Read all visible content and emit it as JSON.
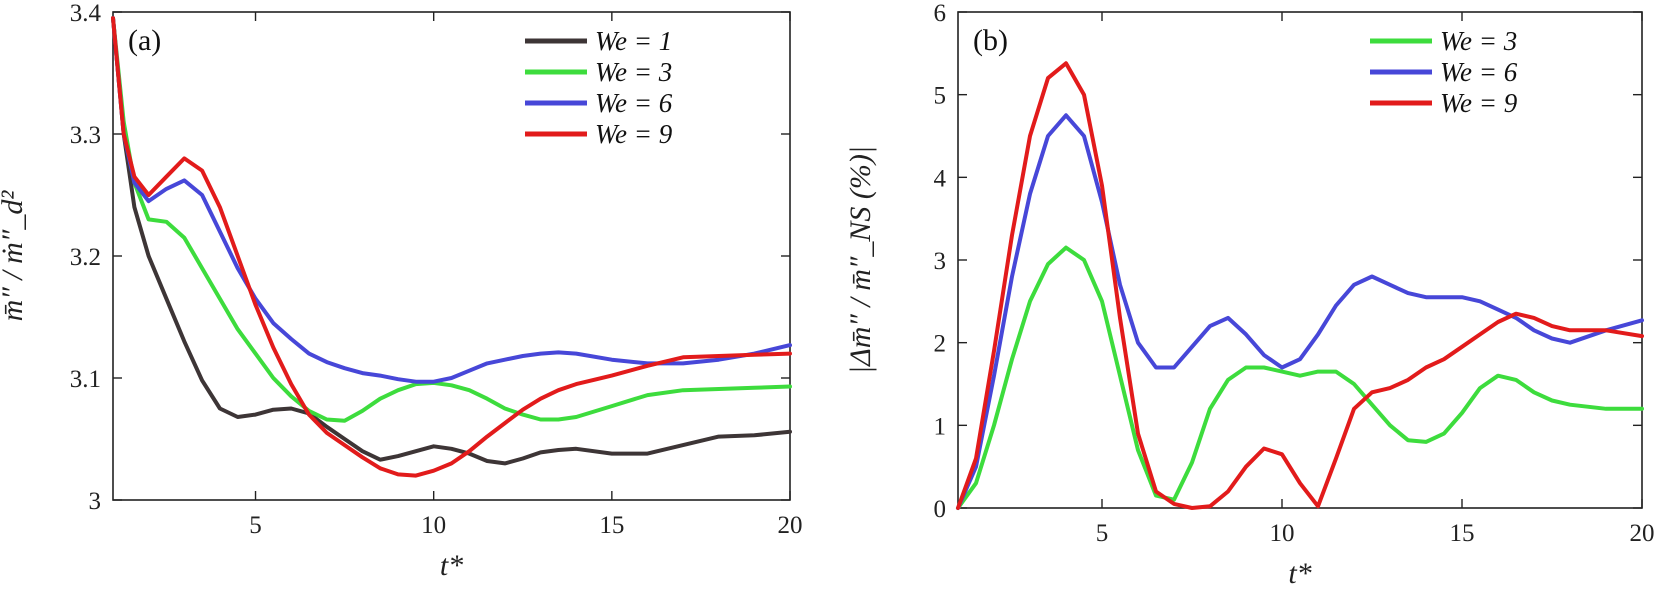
{
  "chart_data": [
    {
      "type": "line",
      "panel_label": "(a)",
      "xlabel": "t*",
      "ylabel": "m̄″ / ṁ″_d²",
      "xlim": [
        1,
        20
      ],
      "ylim": [
        3.0,
        3.4
      ],
      "xticks": [
        5,
        10,
        15,
        20
      ],
      "yticks": [
        3.0,
        3.1,
        3.2,
        3.3,
        3.4
      ],
      "xtick_labels": [
        "5",
        "10",
        "15",
        "20"
      ],
      "ytick_labels": [
        "3",
        "3.1",
        "3.2",
        "3.3",
        "3.4"
      ],
      "legend_position": "top-right",
      "series": [
        {
          "name": "We = 1",
          "color": "#3d3536",
          "x": [
            1,
            1.3,
            1.6,
            2,
            2.5,
            3,
            3.5,
            4,
            4.5,
            5,
            5.5,
            6,
            6.5,
            7,
            7.5,
            8,
            8.5,
            9,
            9.5,
            10,
            10.5,
            11,
            11.5,
            12,
            12.5,
            13,
            13.5,
            14,
            15,
            16,
            17,
            18,
            19,
            20
          ],
          "y": [
            3.395,
            3.3,
            3.24,
            3.2,
            3.165,
            3.13,
            3.098,
            3.075,
            3.068,
            3.07,
            3.074,
            3.075,
            3.071,
            3.06,
            3.05,
            3.04,
            3.033,
            3.036,
            3.04,
            3.044,
            3.042,
            3.038,
            3.032,
            3.03,
            3.034,
            3.039,
            3.041,
            3.042,
            3.038,
            3.038,
            3.045,
            3.052,
            3.053,
            3.056
          ]
        },
        {
          "name": "We = 3",
          "color": "#3ddc3d",
          "x": [
            1,
            1.3,
            1.6,
            2,
            2.5,
            3,
            3.5,
            4,
            4.5,
            5,
            5.5,
            6,
            6.5,
            7,
            7.5,
            8,
            8.5,
            9,
            9.5,
            10,
            10.5,
            11,
            11.5,
            12,
            12.5,
            13,
            13.5,
            14,
            15,
            16,
            17,
            18,
            19,
            20
          ],
          "y": [
            3.395,
            3.31,
            3.26,
            3.23,
            3.228,
            3.215,
            3.19,
            3.165,
            3.14,
            3.12,
            3.1,
            3.085,
            3.073,
            3.066,
            3.065,
            3.073,
            3.083,
            3.09,
            3.095,
            3.096,
            3.094,
            3.09,
            3.083,
            3.075,
            3.07,
            3.066,
            3.066,
            3.068,
            3.077,
            3.086,
            3.09,
            3.091,
            3.092,
            3.093
          ]
        },
        {
          "name": "We = 6",
          "color": "#4747d8",
          "x": [
            1,
            1.3,
            1.6,
            2,
            2.5,
            3,
            3.5,
            4,
            4.5,
            5,
            5.5,
            6,
            6.5,
            7,
            7.5,
            8,
            8.5,
            9,
            9.5,
            10,
            10.5,
            11,
            11.5,
            12,
            12.5,
            13,
            13.5,
            14,
            15,
            16,
            17,
            18,
            19,
            20
          ],
          "y": [
            3.395,
            3.3,
            3.26,
            3.245,
            3.255,
            3.262,
            3.25,
            3.22,
            3.19,
            3.165,
            3.145,
            3.132,
            3.12,
            3.113,
            3.108,
            3.104,
            3.102,
            3.099,
            3.097,
            3.097,
            3.1,
            3.106,
            3.112,
            3.115,
            3.118,
            3.12,
            3.121,
            3.12,
            3.115,
            3.112,
            3.112,
            3.115,
            3.12,
            3.127
          ]
        },
        {
          "name": "We = 9",
          "color": "#e21b1b",
          "x": [
            1,
            1.3,
            1.6,
            2,
            2.5,
            3,
            3.5,
            4,
            4.5,
            5,
            5.5,
            6,
            6.5,
            7,
            7.5,
            8,
            8.5,
            9,
            9.5,
            10,
            10.5,
            11,
            11.5,
            12,
            12.5,
            13,
            13.5,
            14,
            15,
            16,
            17,
            18,
            19,
            20
          ],
          "y": [
            3.395,
            3.3,
            3.265,
            3.25,
            3.265,
            3.28,
            3.27,
            3.24,
            3.2,
            3.16,
            3.125,
            3.095,
            3.07,
            3.055,
            3.045,
            3.035,
            3.026,
            3.021,
            3.02,
            3.024,
            3.03,
            3.04,
            3.052,
            3.063,
            3.074,
            3.083,
            3.09,
            3.095,
            3.102,
            3.11,
            3.117,
            3.118,
            3.119,
            3.12
          ]
        }
      ]
    },
    {
      "type": "line",
      "panel_label": "(b)",
      "xlabel": "t*",
      "ylabel": "|Δm̄″ / m̄″_NS (%)|",
      "xlim": [
        1,
        20
      ],
      "ylim": [
        0,
        6
      ],
      "xticks": [
        5,
        10,
        15,
        20
      ],
      "yticks": [
        0,
        1,
        2,
        3,
        4,
        5,
        6
      ],
      "xtick_labels": [
        "5",
        "10",
        "15",
        "20"
      ],
      "ytick_labels": [
        "0",
        "1",
        "2",
        "3",
        "4",
        "5",
        "6"
      ],
      "legend_position": "top-right",
      "series": [
        {
          "name": "We = 3",
          "color": "#3ddc3d",
          "x": [
            1,
            1.5,
            2,
            2.5,
            3,
            3.5,
            4,
            4.5,
            5,
            5.5,
            6,
            6.5,
            7,
            7.5,
            8,
            8.5,
            9,
            9.5,
            10,
            10.5,
            11,
            11.5,
            12,
            12.5,
            13,
            13.5,
            14,
            14.5,
            15,
            15.5,
            16,
            16.5,
            17,
            17.5,
            18,
            19,
            20
          ],
          "y": [
            0,
            0.3,
            1.0,
            1.8,
            2.5,
            2.95,
            3.15,
            3.0,
            2.5,
            1.6,
            0.7,
            0.15,
            0.1,
            0.55,
            1.2,
            1.55,
            1.7,
            1.7,
            1.65,
            1.6,
            1.65,
            1.65,
            1.5,
            1.25,
            1.0,
            0.82,
            0.8,
            0.9,
            1.15,
            1.45,
            1.6,
            1.55,
            1.4,
            1.3,
            1.25,
            1.2,
            1.2
          ]
        },
        {
          "name": "We = 6",
          "color": "#4747d8",
          "x": [
            1,
            1.5,
            2,
            2.5,
            3,
            3.5,
            4,
            4.5,
            5,
            5.5,
            6,
            6.5,
            7,
            7.5,
            8,
            8.5,
            9,
            9.5,
            10,
            10.5,
            11,
            11.5,
            12,
            12.5,
            13,
            13.5,
            14,
            14.5,
            15,
            15.5,
            16,
            16.5,
            17,
            17.5,
            18,
            19,
            20
          ],
          "y": [
            0,
            0.5,
            1.6,
            2.8,
            3.8,
            4.5,
            4.75,
            4.5,
            3.7,
            2.7,
            2.0,
            1.7,
            1.7,
            1.95,
            2.2,
            2.3,
            2.1,
            1.85,
            1.7,
            1.8,
            2.1,
            2.45,
            2.7,
            2.8,
            2.7,
            2.6,
            2.55,
            2.55,
            2.55,
            2.5,
            2.4,
            2.3,
            2.15,
            2.05,
            2.0,
            2.15,
            2.27
          ]
        },
        {
          "name": "We = 9",
          "color": "#e21b1b",
          "x": [
            1,
            1.5,
            2,
            2.5,
            3,
            3.5,
            4,
            4.5,
            5,
            5.5,
            6,
            6.5,
            7,
            7.5,
            8,
            8.5,
            9,
            9.5,
            10,
            10.5,
            11,
            11.5,
            12,
            12.5,
            13,
            13.5,
            14,
            14.5,
            15,
            15.5,
            16,
            16.5,
            17,
            17.5,
            18,
            19,
            20
          ],
          "y": [
            0,
            0.6,
            1.9,
            3.3,
            4.5,
            5.2,
            5.38,
            5.0,
            3.9,
            2.3,
            0.9,
            0.2,
            0.05,
            0.0,
            0.02,
            0.2,
            0.5,
            0.72,
            0.65,
            0.3,
            0.02,
            0.6,
            1.2,
            1.4,
            1.45,
            1.55,
            1.7,
            1.8,
            1.95,
            2.1,
            2.25,
            2.35,
            2.3,
            2.2,
            2.15,
            2.15,
            2.08
          ]
        }
      ]
    }
  ]
}
